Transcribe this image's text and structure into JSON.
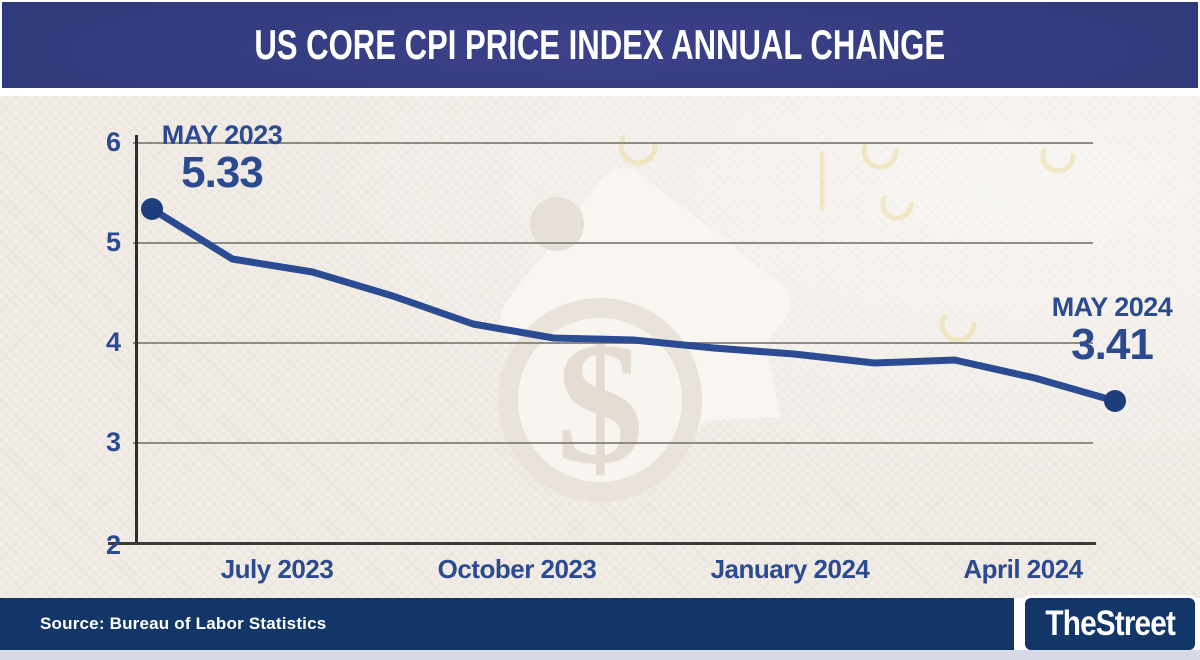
{
  "header": {
    "title": "US CORE CPI PRICE INDEX ANNUAL CHANGE"
  },
  "footer": {
    "source": "Source: Bureau of Labor Statistics",
    "brand": "TheStreet"
  },
  "annotations": {
    "start": {
      "label": "MAY 2023",
      "value": "5.33"
    },
    "end": {
      "label": "MAY 2024",
      "value": "3.41"
    }
  },
  "watermark": {
    "icon": "price-tag-dollar"
  },
  "colors": {
    "header_navy": "#2c3876",
    "footer_navy": "#123668",
    "chart_background": "#f1ece6",
    "line": "#2b4c92",
    "marker": "#1e3d7d",
    "text_navy": "#2b4a8f",
    "gridline": "#8f8b85",
    "axis": "#3a3a3a",
    "bottom_strip": "#d8d9e6"
  },
  "chart_data": {
    "type": "line",
    "title": "US CORE CPI PRICE INDEX ANNUAL CHANGE",
    "x": [
      "May 2023",
      "Jun 2023",
      "Jul 2023",
      "Aug 2023",
      "Sep 2023",
      "Oct 2023",
      "Nov 2023",
      "Dec 2023",
      "Jan 2024",
      "Feb 2024",
      "Mar 2024",
      "Apr 2024",
      "May 2024"
    ],
    "values": [
      5.33,
      4.83,
      4.7,
      4.46,
      4.18,
      4.04,
      4.02,
      3.94,
      3.88,
      3.79,
      3.82,
      3.64,
      3.41
    ],
    "x_tick_labels": [
      "July 2023",
      "October 2023",
      "January 2024",
      "April 2024"
    ],
    "y_tick_labels": [
      "6",
      "5",
      "4",
      "3",
      "2"
    ],
    "ylim": [
      2,
      6
    ],
    "xlabel": "",
    "ylabel": "",
    "grid": "horizontal-only",
    "legend": "none",
    "line_color": "#2b4c92",
    "marker_color": "#1e3d7d",
    "markers": "first-and-last-point-only"
  }
}
